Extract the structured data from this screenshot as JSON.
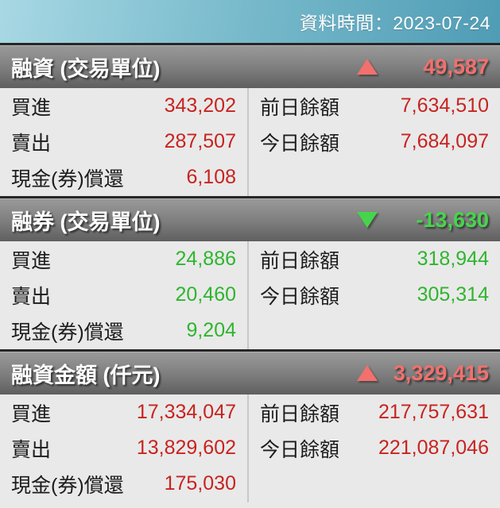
{
  "titlebar": {
    "datetime_label": "資料時間：2023-07-24"
  },
  "colors": {
    "up_value": "#c8231f",
    "down_value": "#2eb52e",
    "up_header": "#f2706d",
    "down_header": "#47d44d",
    "titlebar_text": "#ffffff"
  },
  "sections": [
    {
      "title": "融資 (交易單位)",
      "direction": "up",
      "change": "49,587",
      "left_rows": [
        {
          "label": "買進",
          "value": "343,202"
        },
        {
          "label": "賣出",
          "value": "287,507"
        },
        {
          "label": "現金(券)償還",
          "value": "6,108"
        }
      ],
      "right_rows": [
        {
          "label": "前日餘額",
          "value": "7,634,510"
        },
        {
          "label": "今日餘額",
          "value": "7,684,097"
        }
      ]
    },
    {
      "title": "融券 (交易單位)",
      "direction": "down",
      "change": "-13,630",
      "left_rows": [
        {
          "label": "買進",
          "value": "24,886"
        },
        {
          "label": "賣出",
          "value": "20,460"
        },
        {
          "label": "現金(券)償還",
          "value": "9,204"
        }
      ],
      "right_rows": [
        {
          "label": "前日餘額",
          "value": "318,944"
        },
        {
          "label": "今日餘額",
          "value": "305,314"
        }
      ]
    },
    {
      "title": "融資金額 (仟元)",
      "direction": "up",
      "change": "3,329,415",
      "left_rows": [
        {
          "label": "買進",
          "value": "17,334,047"
        },
        {
          "label": "賣出",
          "value": "13,829,602"
        },
        {
          "label": "現金(券)償還",
          "value": "175,030"
        }
      ],
      "right_rows": [
        {
          "label": "前日餘額",
          "value": "217,757,631"
        },
        {
          "label": "今日餘額",
          "value": "221,087,046"
        }
      ]
    }
  ]
}
